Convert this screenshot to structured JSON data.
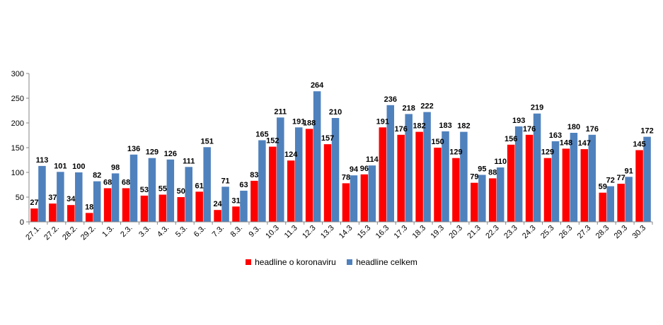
{
  "chart_data": {
    "type": "bar",
    "categories": [
      "27.1.",
      "27.2.",
      "28.2.",
      "29.2.",
      "1.3.",
      "2.3.",
      "3.3.",
      "4.3.",
      "5.3.",
      "6.3.",
      "7.3.",
      "8.3.",
      "9.3.",
      "10.3",
      "11.3",
      "12.3",
      "13.3",
      "14.3",
      "15.3",
      "16.3",
      "17.3",
      "18.3",
      "19.3",
      "20.3",
      "21.3",
      "22.3",
      "23.3",
      "24.3",
      "25.3",
      "26.3",
      "27.3",
      "28.3",
      "29.3",
      "30.3"
    ],
    "series": [
      {
        "name": "headline o koronaviru",
        "color": "#ff0000",
        "values": [
          27,
          37,
          34,
          18,
          68,
          68,
          53,
          55,
          50,
          61,
          24,
          31,
          83,
          152,
          124,
          188,
          157,
          78,
          96,
          191,
          176,
          182,
          150,
          129,
          79,
          88,
          156,
          176,
          129,
          148,
          147,
          59,
          77,
          145
        ]
      },
      {
        "name": "headline celkem",
        "color": "#4f81bd",
        "values": [
          113,
          101,
          100,
          82,
          98,
          136,
          129,
          126,
          111,
          151,
          71,
          63,
          165,
          211,
          191,
          264,
          210,
          94,
          114,
          236,
          218,
          222,
          183,
          182,
          95,
          110,
          193,
          219,
          163,
          180,
          176,
          72,
          91,
          172
        ]
      }
    ],
    "y_ticks": [
      "0",
      "50",
      "100",
      "150",
      "200",
      "250",
      "300"
    ],
    "ylim": [
      0,
      300
    ],
    "legend_position": "bottom",
    "grid": false
  }
}
